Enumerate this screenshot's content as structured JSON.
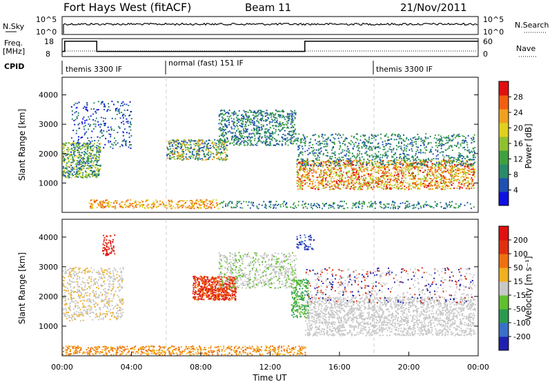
{
  "header": {
    "radar": "Fort Hays West (fitACF)",
    "beam": "Beam 11",
    "date": "21/Nov/2011"
  },
  "top_panels": {
    "nsky": {
      "label": "N.Sky",
      "ticks": [
        "10^5",
        "10^0"
      ],
      "right_label": "N.Search",
      "right_ticks": [
        "10^5",
        "10^0"
      ]
    },
    "freq": {
      "label_line1": "Freq.",
      "label_line2": "[MHz]",
      "ticks": [
        "18",
        "8"
      ],
      "right_label": "Nave",
      "right_ticks": [
        "60",
        "0"
      ],
      "freq_steps": [
        {
          "t": 0,
          "mhz": 10
        },
        {
          "t": 0.15,
          "mhz": 18
        },
        {
          "t": 2,
          "mhz": 10
        },
        {
          "t": 14,
          "mhz": 18
        },
        {
          "t": 24,
          "mhz": 18
        }
      ]
    },
    "cpid": {
      "label": "CPID",
      "segments": [
        {
          "start": 0,
          "end": 6,
          "name": "themis 3300 IF"
        },
        {
          "start": 6,
          "end": 18,
          "name": "normal (fast) 151 IF"
        },
        {
          "start": 18,
          "end": 24,
          "name": "themis 3300 IF"
        }
      ]
    }
  },
  "chart_data": [
    {
      "type": "heatmap",
      "name": "power",
      "ylabel": "Slant Range [km]",
      "x_range_hours": [
        0,
        24
      ],
      "ylim": [
        0,
        4600
      ],
      "yticks": [
        1000,
        2000,
        3000,
        4000
      ],
      "colorbar": {
        "label": "Power [dB]",
        "ticks": [
          4,
          8,
          12,
          16,
          20,
          24,
          28
        ],
        "colors": [
          "#1010e0",
          "#2050b0",
          "#2a8a6a",
          "#40a040",
          "#90c030",
          "#e0d020",
          "#f0a020",
          "#f06010",
          "#e01010"
        ]
      }
    },
    {
      "type": "heatmap",
      "name": "velocity",
      "ylabel": "Slant Range [km]",
      "xlabel": "Time UT",
      "x_range_hours": [
        0,
        24
      ],
      "ylim": [
        0,
        4600
      ],
      "yticks": [
        1000,
        2000,
        3000,
        4000
      ],
      "xticks": [
        "00:00",
        "04:00",
        "08:00",
        "12:00",
        "16:00",
        "20:00",
        "00:00"
      ],
      "colorbar": {
        "label": "Velocity [m s⁻¹]",
        "ticks": [
          "200",
          "100",
          "50",
          "15",
          "-15",
          "-50",
          "-100",
          "-200"
        ],
        "colors": [
          "#2020b0",
          "#3a70c8",
          "#2a9a50",
          "#60c030",
          "#c8c8c8",
          "#f0b020",
          "#f07010",
          "#e03010",
          "#e01010"
        ]
      }
    }
  ]
}
